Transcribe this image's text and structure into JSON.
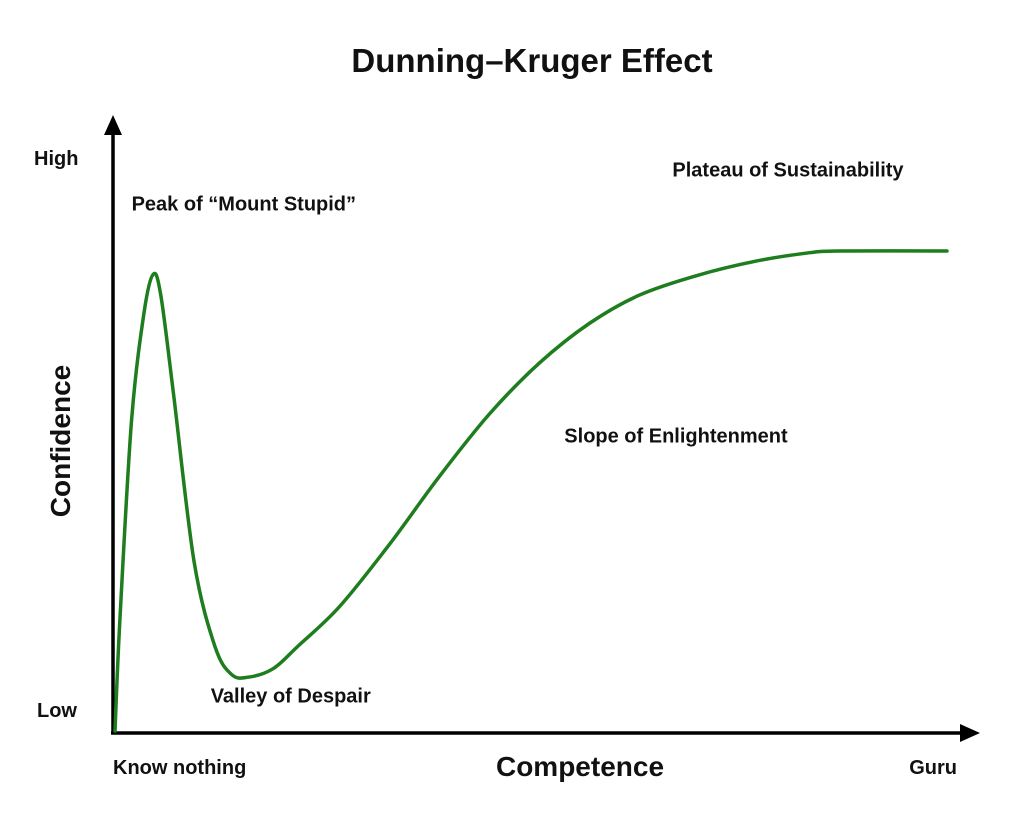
{
  "chart_data": {
    "type": "line",
    "title": "Dunning–Kruger Effect",
    "xlabel": "Competence",
    "ylabel": "Confidence",
    "xlim": [
      0,
      100
    ],
    "ylim": [
      0,
      100
    ],
    "x_tick_labels": {
      "min": "Know nothing",
      "max": "Guru"
    },
    "y_tick_labels": {
      "min": "Low",
      "max": "High"
    },
    "grid": false,
    "legend": "none",
    "series": [
      {
        "color": "#1e7d1e",
        "points": [
          [
            0,
            0
          ],
          [
            0.6,
            20
          ],
          [
            2,
            55
          ],
          [
            3.5,
            74
          ],
          [
            4.6,
            80.7
          ],
          [
            5.5,
            77
          ],
          [
            7,
            60
          ],
          [
            9.5,
            30
          ],
          [
            12,
            15
          ],
          [
            14,
            10
          ],
          [
            16,
            9.5
          ],
          [
            19,
            11
          ],
          [
            22,
            15
          ],
          [
            27,
            22
          ],
          [
            33,
            33
          ],
          [
            39,
            45
          ],
          [
            45,
            56
          ],
          [
            51,
            65
          ],
          [
            57,
            72
          ],
          [
            63,
            77
          ],
          [
            70,
            80.5
          ],
          [
            77,
            83
          ],
          [
            83.5,
            84.5
          ],
          [
            87,
            84.8
          ],
          [
            100,
            84.8
          ]
        ]
      }
    ],
    "annotations": [
      {
        "text": "Peak of “Mount Stupid”",
        "x": 2,
        "y": 92
      },
      {
        "text": "Valley of Despair",
        "x": 11.5,
        "y": 5
      },
      {
        "text": "Slope of Enlightenment",
        "x": 54,
        "y": 51
      },
      {
        "text": "Plateau of Sustainability",
        "x": 67,
        "y": 98
      }
    ]
  }
}
